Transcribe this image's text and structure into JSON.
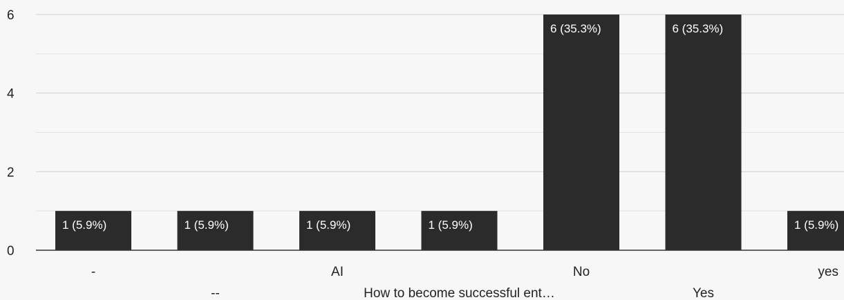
{
  "chart_data": {
    "type": "bar",
    "categories": [
      "-",
      "--",
      "AI",
      "How to become successful ent…",
      "No",
      "Yes",
      "yes"
    ],
    "values": [
      1,
      1,
      1,
      1,
      6,
      6,
      1
    ],
    "data_labels": [
      "1 (5.9%)",
      "1 (5.9%)",
      "1 (5.9%)",
      "1 (5.9%)",
      "6 (35.3%)",
      "6 (35.3%)",
      "1 (5.9%)"
    ],
    "title": "",
    "xlabel": "",
    "ylabel": "",
    "ylim": [
      0,
      6
    ],
    "yticks": [
      "0",
      "2",
      "4",
      "6"
    ],
    "grid": true,
    "legend": "none",
    "bar_color": "#2b2b2b",
    "label_color": "#ffffff"
  }
}
